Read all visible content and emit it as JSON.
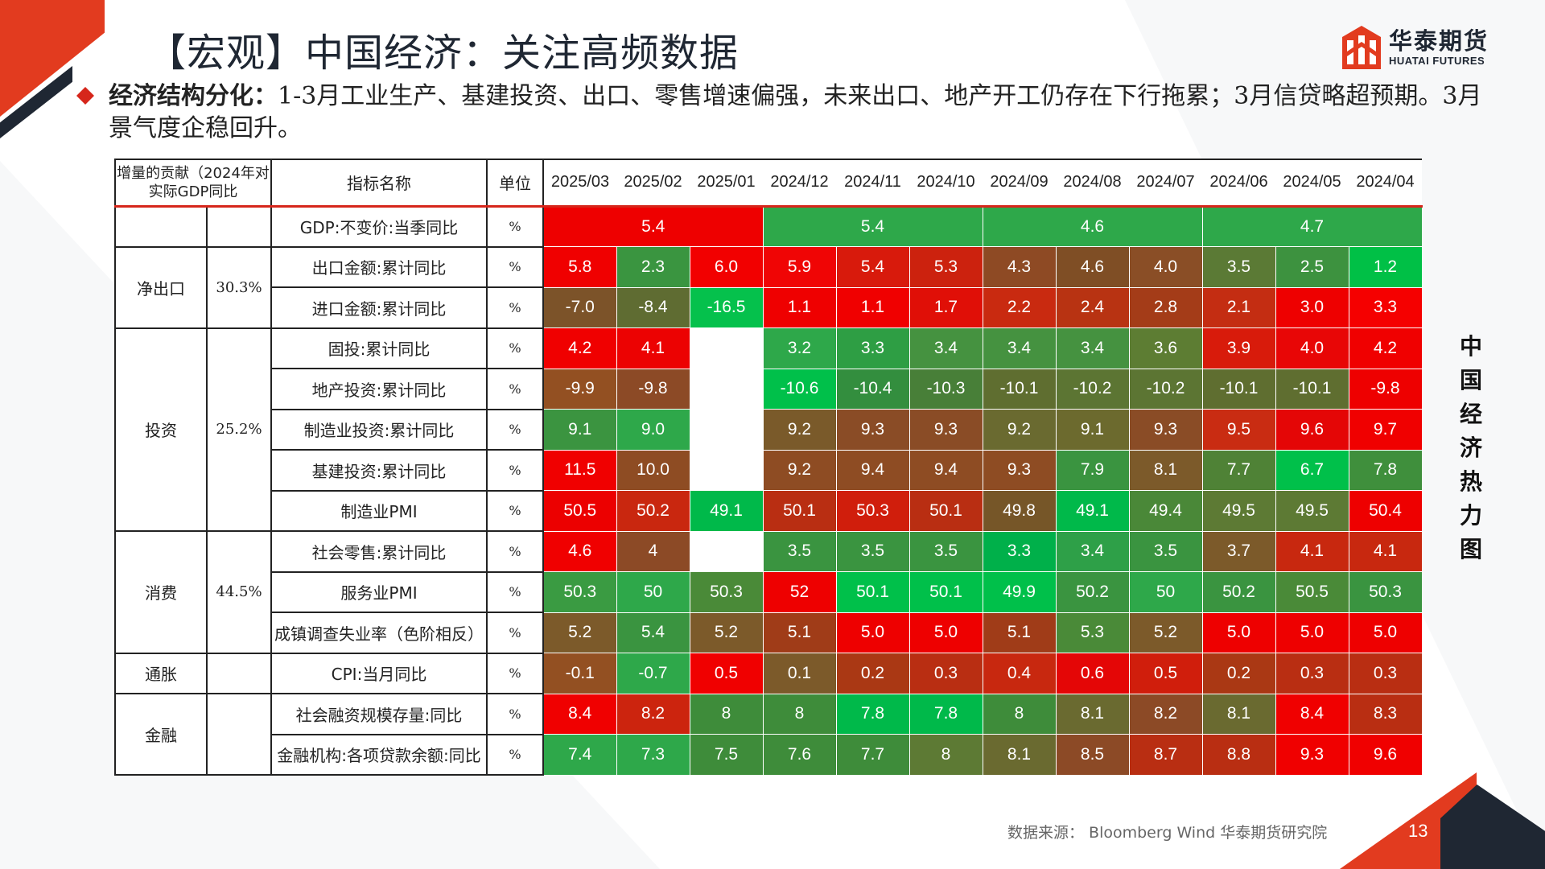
{
  "page": {
    "title": "【宏观】中国经济：关注高频数据",
    "subtitle_bold": "经济结构分化：",
    "subtitle_rest": "1-3月工业生产、基建投资、出口、零售增速偏强，未来出口、地产开工仍存在下行拖累；3月信贷略超预期。3月景气度企稳回升。",
    "side_title": "中国经济热力图",
    "source": "数据来源：  Bloomberg Wind  华泰期货研究院",
    "page_number": "13"
  },
  "logo": {
    "cn": "华泰期货",
    "en": "HUATAI FUTURES",
    "color": "#e23b1f"
  },
  "table": {
    "headers": {
      "contribution": "增量的贡献（2024年对实际GDP同比",
      "indicator": "指标名称",
      "unit": "单位",
      "dates": [
        "2025/03",
        "2025/02",
        "2025/01",
        "2024/12",
        "2024/11",
        "2024/10",
        "2024/09",
        "2024/08",
        "2024/07",
        "2024/06",
        "2024/05",
        "2024/04"
      ]
    },
    "groups": [
      {
        "name": "净出口",
        "share": "30.3%"
      },
      {
        "name": "投资",
        "share": "25.2%"
      },
      {
        "name": "消费",
        "share": "44.5%"
      },
      {
        "name": "通胀",
        "share": ""
      },
      {
        "name": "金融",
        "share": ""
      }
    ],
    "rows": [
      {
        "indicator": "GDP:不变价:当季同比",
        "unit": "%",
        "values": [
          "5.4",
          "5.4",
          "4.6",
          "4.7"
        ]
      },
      {
        "indicator": "出口金额:累计同比",
        "unit": "%",
        "values": [
          "5.8",
          "2.3",
          "6.0",
          "5.9",
          "5.4",
          "5.3",
          "4.3",
          "4.6",
          "4.0",
          "3.5",
          "2.5",
          "1.2"
        ]
      },
      {
        "indicator": "进口金额:累计同比",
        "unit": "%",
        "values": [
          "-7.0",
          "-8.4",
          "-16.5",
          "1.1",
          "1.1",
          "1.7",
          "2.2",
          "2.4",
          "2.8",
          "2.1",
          "3.0",
          "3.3"
        ]
      },
      {
        "indicator": "固投:累计同比",
        "unit": "%",
        "values": [
          "4.2",
          "4.1",
          "",
          "3.2",
          "3.3",
          "3.4",
          "3.4",
          "3.4",
          "3.6",
          "3.9",
          "4.0",
          "4.2"
        ]
      },
      {
        "indicator": "地产投资:累计同比",
        "unit": "%",
        "values": [
          "-9.9",
          "-9.8",
          "",
          "-10.6",
          "-10.4",
          "-10.3",
          "-10.1",
          "-10.2",
          "-10.2",
          "-10.1",
          "-10.1",
          "-9.8"
        ]
      },
      {
        "indicator": "制造业投资:累计同比",
        "unit": "%",
        "values": [
          "9.1",
          "9.0",
          "",
          "9.2",
          "9.3",
          "9.3",
          "9.2",
          "9.1",
          "9.3",
          "9.5",
          "9.6",
          "9.7"
        ]
      },
      {
        "indicator": "基建投资:累计同比",
        "unit": "%",
        "values": [
          "11.5",
          "10.0",
          "",
          "9.2",
          "9.4",
          "9.4",
          "9.3",
          "7.9",
          "8.1",
          "7.7",
          "6.7",
          "7.8"
        ]
      },
      {
        "indicator": "制造业PMI",
        "unit": "%",
        "values": [
          "50.5",
          "50.2",
          "49.1",
          "50.1",
          "50.3",
          "50.1",
          "49.8",
          "49.1",
          "49.4",
          "49.5",
          "49.5",
          "50.4"
        ]
      },
      {
        "indicator": "社会零售:累计同比",
        "unit": "%",
        "values": [
          "4.6",
          "4",
          "",
          "3.5",
          "3.5",
          "3.5",
          "3.3",
          "3.4",
          "3.5",
          "3.7",
          "4.1",
          "4.1"
        ]
      },
      {
        "indicator": "服务业PMI",
        "unit": "%",
        "values": [
          "50.3",
          "50",
          "50.3",
          "52",
          "50.1",
          "50.1",
          "49.9",
          "50.2",
          "50",
          "50.2",
          "50.5",
          "50.3"
        ]
      },
      {
        "indicator": "成镇调查失业率（色阶相反）",
        "unit": "%",
        "values": [
          "5.2",
          "5.4",
          "5.2",
          "5.1",
          "5.0",
          "5.0",
          "5.1",
          "5.3",
          "5.2",
          "5.0",
          "5.0",
          "5.0"
        ]
      },
      {
        "indicator": "CPI:当月同比",
        "unit": "%",
        "values": [
          "-0.1",
          "-0.7",
          "0.5",
          "0.1",
          "0.2",
          "0.3",
          "0.4",
          "0.6",
          "0.5",
          "0.2",
          "0.3",
          "0.3"
        ]
      },
      {
        "indicator": "社会融资规模存量:同比",
        "unit": "%",
        "values": [
          "8.4",
          "8.2",
          "8",
          "8",
          "7.8",
          "7.8",
          "8",
          "8.1",
          "8.2",
          "8.1",
          "8.4",
          "8.3"
        ]
      },
      {
        "indicator": "金融机构:各项贷款余额:同比",
        "unit": "%",
        "values": [
          "7.4",
          "7.3",
          "7.5",
          "7.6",
          "7.7",
          "8",
          "8.1",
          "8.5",
          "8.7",
          "8.8",
          "9.3",
          "9.6"
        ]
      }
    ],
    "cell_colors": [
      [
        "#ee0000",
        "#2ea84a",
        "#2ea84a"
      ],
      [
        "#f00000",
        "#3a9540",
        "#f20000",
        "#f00505",
        "#d81a0c",
        "#cc220e",
        "#8e4a24",
        "#7f4e25",
        "#8a4e26",
        "#5b7a35",
        "#3d923f",
        "#00c046"
      ],
      [
        "#7c5329",
        "#5f6c32",
        "#05c14c",
        "#ef0000",
        "#f00000",
        "#e00f07",
        "#c92a10",
        "#b83312",
        "#a43c18",
        "#c42d12",
        "#ee0000",
        "#f50000"
      ],
      [
        "#f00000",
        "#ec0202",
        "#ffffff",
        "#2ea84a",
        "#2e9e44",
        "#459240",
        "#459240",
        "#459240",
        "#5d7d33",
        "#d81b0b",
        "#e80606",
        "#f00000"
      ],
      [
        "#935022",
        "#8c4a26",
        "#ffffff",
        "#00c04a",
        "#338e3e",
        "#487f38",
        "#5f6e30",
        "#5c7533",
        "#5c7533",
        "#5f6e30",
        "#5f6e30",
        "#ee0000"
      ],
      [
        "#3b9440",
        "#2ea84a",
        "#ffffff",
        "#7a5a2a",
        "#8a4c26",
        "#8a4c26",
        "#6a6a30",
        "#6c6a2e",
        "#8a4c26",
        "#c92c12",
        "#e40606",
        "#f00000"
      ],
      [
        "#f00000",
        "#8e4c23",
        "#ffffff",
        "#8e4c23",
        "#8e4c23",
        "#8e4c23",
        "#8e4c23",
        "#3a9440",
        "#7c5a2a",
        "#4f8236",
        "#00c04a",
        "#3f8f3c"
      ],
      [
        "#ec0000",
        "#c9270f",
        "#00b94a",
        "#b92e12",
        "#d01e0c",
        "#b92e12",
        "#765628",
        "#00b94a",
        "#4a8838",
        "#5d7a34",
        "#5d7a34",
        "#ee0000"
      ],
      [
        "#f00000",
        "#8c4a26",
        "#ffffff",
        "#3a9440",
        "#3a9440",
        "#3a9440",
        "#00b04a",
        "#2ea048",
        "#3a9440",
        "#7c5a2a",
        "#c8280f",
        "#c8280f"
      ],
      [
        "#3a9b42",
        "#2ea84a",
        "#4a8a38",
        "#ee0000",
        "#00c04a",
        "#00c04a",
        "#00c04a",
        "#3a9440",
        "#2ea84a",
        "#3a9440",
        "#4a8a38",
        "#3a9440"
      ],
      [
        "#7c5a2a",
        "#3a9440",
        "#7c5a2a",
        "#a03c18",
        "#ee0000",
        "#ee0000",
        "#a03c18",
        "#4a8a38",
        "#7c5a2a",
        "#ee0000",
        "#ee0000",
        "#ee0000"
      ],
      [
        "#935022",
        "#2ea84a",
        "#f00000",
        "#7c5a2a",
        "#aa3814",
        "#b92e12",
        "#c8280f",
        "#e40606",
        "#d01e0c",
        "#aa3814",
        "#b92e12",
        "#b92e12"
      ],
      [
        "#f00000",
        "#cc240e",
        "#3e8c3a",
        "#3e8c3a",
        "#00b94a",
        "#00b94a",
        "#3e8c3a",
        "#6a6a30",
        "#8c4a26",
        "#6a6a30",
        "#f00000",
        "#b92e12"
      ],
      [
        "#2ea84a",
        "#2ea84a",
        "#3e8c3a",
        "#3e8c3a",
        "#3e8c3a",
        "#5d7a34",
        "#6a6a30",
        "#8c4a26",
        "#b92e12",
        "#b92e12",
        "#f00000",
        "#f00000"
      ]
    ]
  }
}
